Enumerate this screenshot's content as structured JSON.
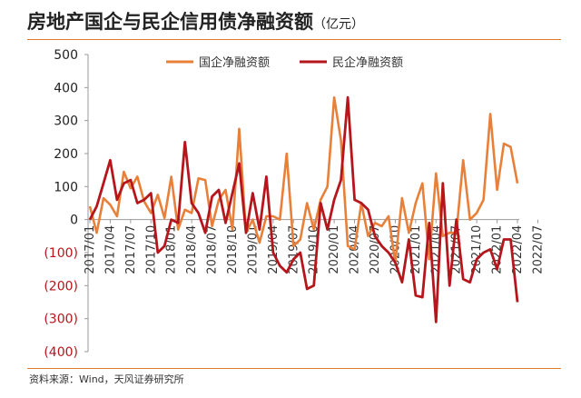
{
  "header": {
    "title": "房地产国企与民企信用债净融资额",
    "unit": "（亿元）"
  },
  "footer": {
    "source": "资料来源：Wind，天风证券研究所"
  },
  "colors": {
    "accent": "#e07a30",
    "soe": "#e8803a",
    "private": "#b5161c",
    "axis": "#999999",
    "negative_tick": "#b5161c"
  },
  "chart_data": {
    "type": "line",
    "title": "房地产国企与民企信用债净融资额",
    "unit": "亿元",
    "ylim": [
      -400,
      500
    ],
    "yticks": [
      500,
      400,
      300,
      200,
      100,
      0,
      -100,
      -200,
      -300,
      -400
    ],
    "ytick_labels": [
      "500",
      "400",
      "300",
      "200",
      "100",
      "0",
      "(100)",
      "(200)",
      "(300)",
      "(400)"
    ],
    "x_tick_labels": [
      "2017/01",
      "2017/04",
      "2017/07",
      "2017/10",
      "2018/01",
      "2018/04",
      "2018/07",
      "2018/10",
      "2019/01",
      "2019/04",
      "2019/07",
      "2019/10",
      "2020/01",
      "2020/04",
      "2020/07",
      "2020/10",
      "2021/01",
      "2021/04",
      "2021/07",
      "2021/10",
      "2022/01",
      "2022/04",
      "2022/07"
    ],
    "legend": "top",
    "grid": false,
    "series": [
      {
        "name": "国企净融资额",
        "values": [
          40,
          -40,
          65,
          45,
          10,
          145,
          95,
          130,
          55,
          20,
          75,
          5,
          130,
          -30,
          30,
          20,
          125,
          120,
          -20,
          60,
          90,
          -30,
          275,
          -40,
          0,
          -70,
          10,
          10,
          0,
          200,
          -80,
          -60,
          50,
          -30,
          60,
          100,
          370,
          240,
          -80,
          -90,
          50,
          -50,
          -10,
          -20,
          10,
          -130,
          65,
          -40,
          50,
          110,
          -120,
          140,
          -50,
          -40,
          -40,
          180,
          0,
          20,
          60,
          320,
          90,
          230,
          220,
          110
        ]
      },
      {
        "name": "民企净融资额",
        "values": [
          0,
          40,
          110,
          180,
          60,
          110,
          120,
          50,
          60,
          80,
          -100,
          -80,
          0,
          -10,
          235,
          50,
          20,
          -40,
          70,
          90,
          -10,
          80,
          170,
          -40,
          80,
          -30,
          130,
          -100,
          -140,
          -160,
          -120,
          -100,
          -210,
          -200,
          50,
          -30,
          60,
          120,
          370,
          60,
          50,
          30,
          -50,
          -80,
          -100,
          -130,
          -190,
          -60,
          -230,
          -235,
          -10,
          -310,
          110,
          -200,
          0,
          -180,
          -190,
          -120,
          -100,
          -90,
          -150,
          -60,
          -60,
          -250
        ]
      }
    ]
  }
}
